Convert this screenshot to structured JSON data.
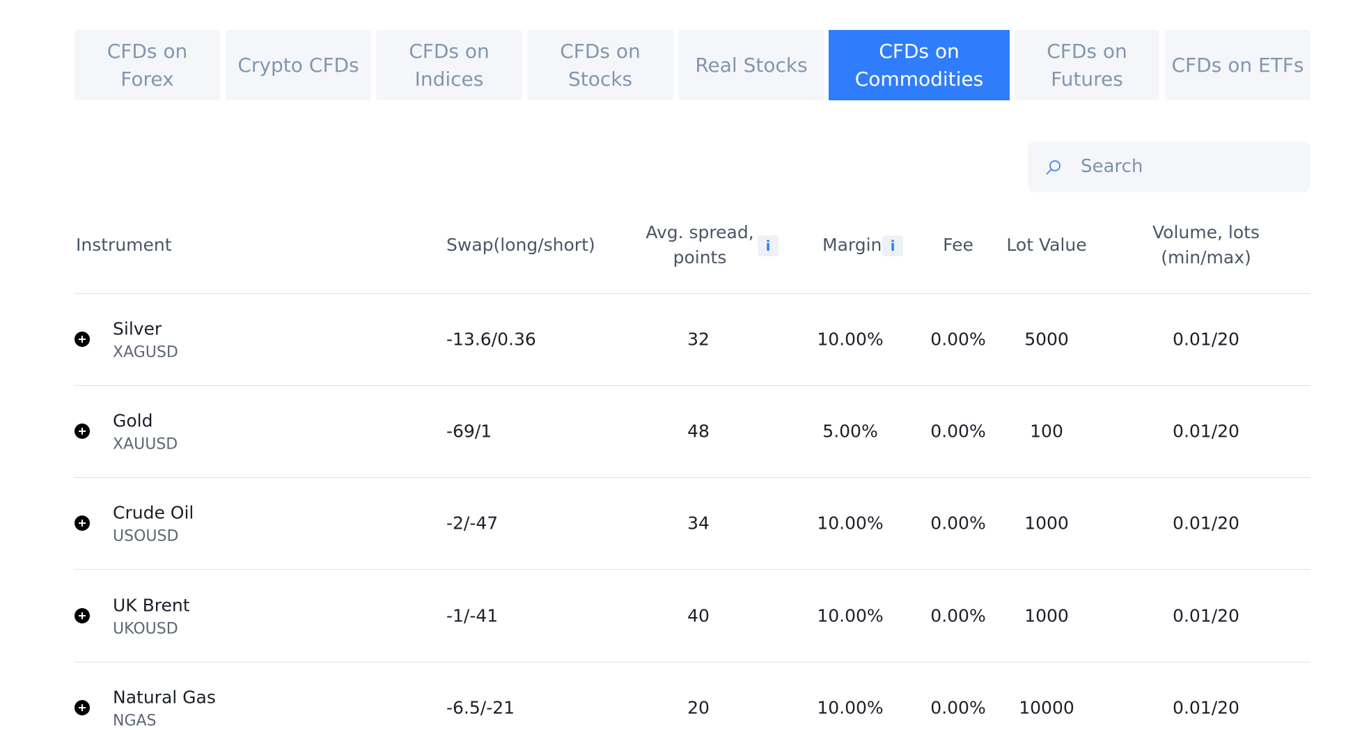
{
  "tabs": [
    "CFDs on Forex",
    "Crypto CFDs",
    "CFDs on Indices",
    "CFDs on Stocks",
    "Real Stocks",
    "CFDs on Commodities",
    "CFDs on Futures",
    "CFDs on ETFs"
  ],
  "search": {
    "placeholder": "Search"
  },
  "table": {
    "headers": [
      "Instrument",
      "Swap(long/short)",
      "Avg. spread, points",
      "Margin",
      "Fee",
      "Lot Value",
      "Volume, lots (min/max)"
    ],
    "rows": [
      {
        "name": "Silver",
        "code": "XAGUSD",
        "swap": "-13.6/0.36",
        "spread": 32,
        "margin": "10.00%",
        "fee": "0.00%",
        "lot": 5000,
        "volume": "0.01/20"
      },
      {
        "name": "Gold",
        "code": "XAUUSD",
        "swap": "-69/1",
        "spread": 48,
        "margin": "5.00%",
        "fee": "0.00%",
        "lot": 100,
        "volume": "0.01/20"
      },
      {
        "name": "Crude Oil",
        "code": "USOUSD",
        "swap": "-2/-47",
        "spread": 34,
        "margin": "10.00%",
        "fee": "0.00%",
        "lot": 1000,
        "volume": "0.01/20"
      },
      {
        "name": "UK Brent",
        "code": "UKOUSD",
        "swap": "-1/-41",
        "spread": 40,
        "margin": "10.00%",
        "fee": "0.00%",
        "lot": 1000,
        "volume": "0.01/20"
      },
      {
        "name": "Natural Gas",
        "code": "NGAS",
        "swap": "-6.5/-21",
        "spread": 20,
        "margin": "10.00%",
        "fee": "0.00%",
        "lot": 10000,
        "volume": "0.01/20"
      }
    ]
  }
}
